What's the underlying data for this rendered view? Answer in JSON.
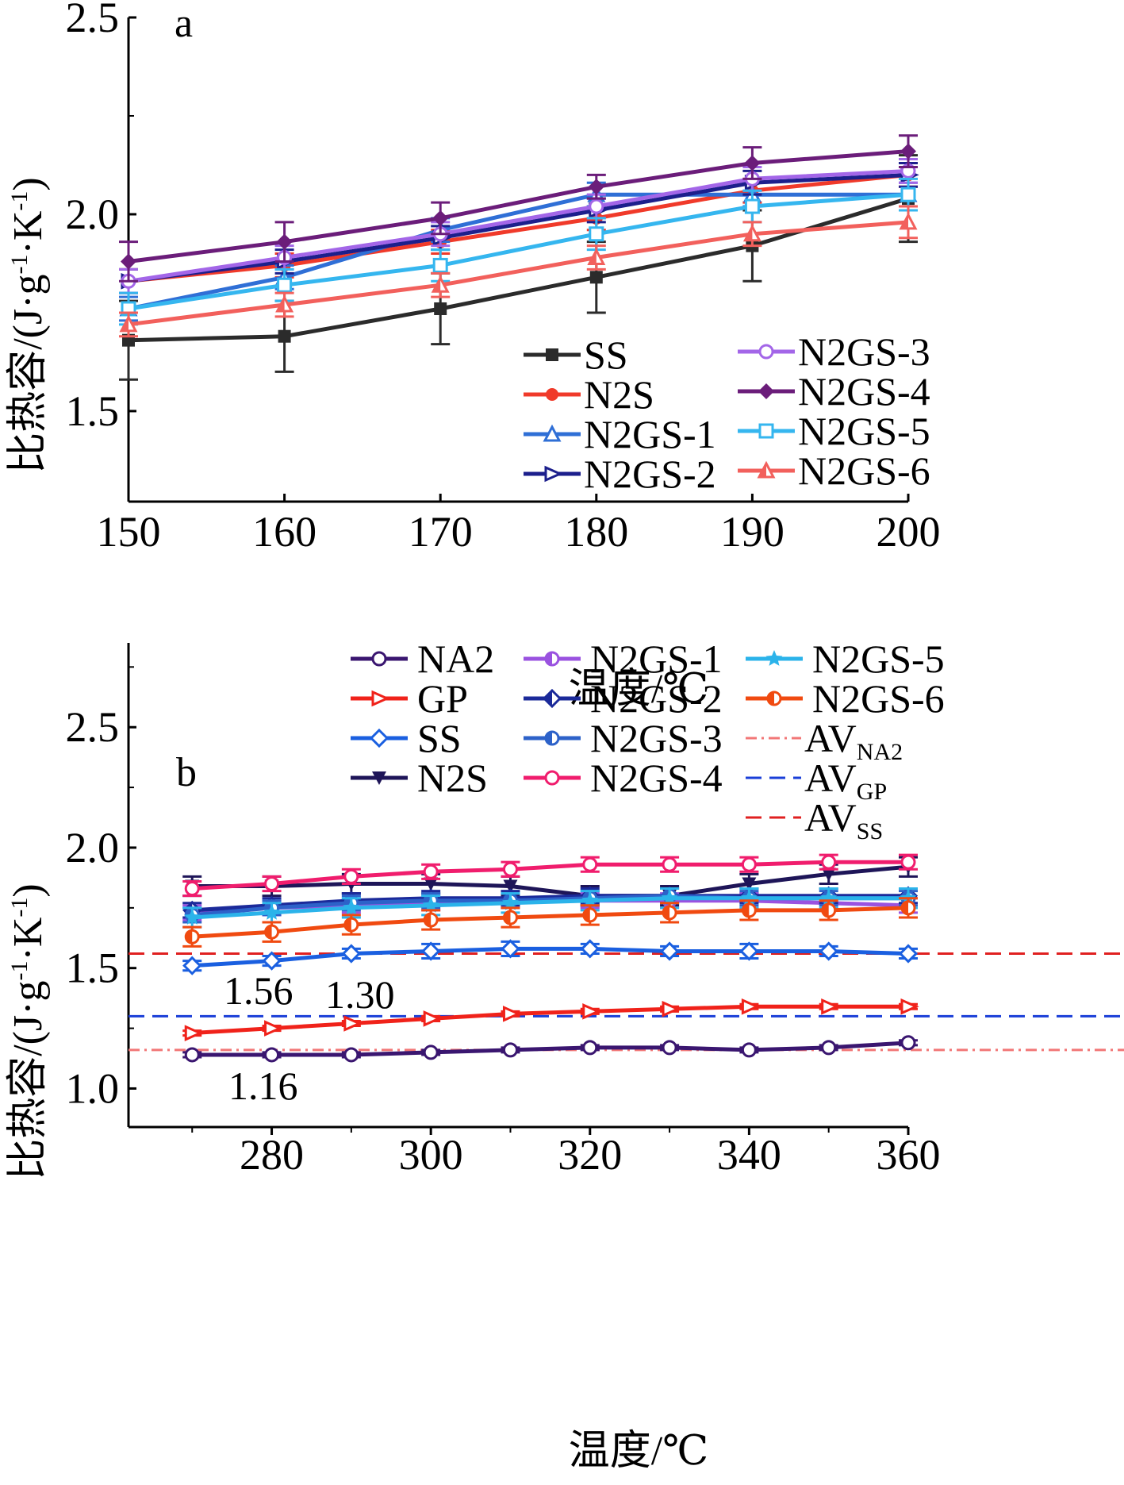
{
  "chart_data": [
    {
      "type": "line",
      "panel": "a",
      "xlabel": "温度/℃",
      "ylabel": "比热容/(J·g⁻¹·K⁻¹)",
      "x": [
        150,
        160,
        170,
        180,
        190,
        200
      ],
      "xticks": [
        "150",
        "160",
        "170",
        "180",
        "190",
        "200"
      ],
      "yticks": [
        "1.5",
        "2.0",
        "2.5"
      ],
      "xlim": [
        150,
        200
      ],
      "ylim": [
        1.27,
        2.5
      ],
      "grid": false,
      "legend_position": "bottom-right",
      "series": [
        {
          "name": "SS",
          "color": "#2b2b2b",
          "marker": "square",
          "values": [
            1.68,
            1.69,
            1.76,
            1.84,
            1.92,
            2.04
          ],
          "err": [
            0.1,
            0.09,
            0.09,
            0.09,
            0.09,
            0.11
          ]
        },
        {
          "name": "N2S",
          "color": "#f03a2a",
          "marker": "circle",
          "values": [
            1.83,
            1.87,
            1.93,
            1.99,
            2.06,
            2.1
          ],
          "err": [
            0.03,
            0.03,
            0.03,
            0.03,
            0.03,
            0.03
          ]
        },
        {
          "name": "N2GS-1",
          "color": "#2f6fd6",
          "marker": "triangle",
          "values": [
            1.76,
            1.84,
            1.96,
            2.05,
            2.05,
            2.05
          ],
          "err": [
            0.03,
            0.03,
            0.03,
            0.03,
            0.03,
            0.03
          ]
        },
        {
          "name": "N2GS-2",
          "color": "#1c1f8c",
          "marker": "tri-right",
          "values": [
            1.83,
            1.88,
            1.94,
            2.01,
            2.08,
            2.1
          ],
          "err": [
            0.03,
            0.03,
            0.03,
            0.03,
            0.03,
            0.03
          ]
        },
        {
          "name": "N2GS-3",
          "color": "#a366e8",
          "marker": "circle-open",
          "values": [
            1.83,
            1.89,
            1.95,
            2.02,
            2.09,
            2.11
          ],
          "err": [
            0.03,
            0.03,
            0.03,
            0.03,
            0.03,
            0.03
          ]
        },
        {
          "name": "N2GS-4",
          "color": "#6b1d7a",
          "marker": "diamond",
          "values": [
            1.88,
            1.93,
            1.99,
            2.07,
            2.13,
            2.16
          ],
          "err": [
            0.05,
            0.05,
            0.04,
            0.03,
            0.04,
            0.04
          ]
        },
        {
          "name": "N2GS-5",
          "color": "#35b6ef",
          "marker": "square-open",
          "values": [
            1.76,
            1.82,
            1.87,
            1.95,
            2.02,
            2.05
          ],
          "err": [
            0.04,
            0.04,
            0.04,
            0.04,
            0.04,
            0.04
          ]
        },
        {
          "name": "N2GS-6",
          "color": "#f2605c",
          "marker": "tri-half",
          "values": [
            1.72,
            1.77,
            1.82,
            1.89,
            1.95,
            1.98
          ],
          "err": [
            0.03,
            0.03,
            0.03,
            0.03,
            0.03,
            0.04
          ]
        }
      ]
    },
    {
      "type": "line",
      "panel": "b",
      "xlabel": "温度/℃",
      "ylabel": "比热容/(J·g⁻¹·K⁻¹)",
      "x": [
        270,
        280,
        290,
        300,
        310,
        320,
        330,
        340,
        350,
        360
      ],
      "xticks": [
        "280",
        "300",
        "320",
        "340",
        "360"
      ],
      "yticks": [
        "1.0",
        "1.5",
        "2.0",
        "2.5"
      ],
      "xlim": [
        262,
        360
      ],
      "ylim": [
        0.84,
        2.85
      ],
      "grid": false,
      "legend_position": "top-right",
      "series": [
        {
          "name": "NA2",
          "color": "#3a1670",
          "marker": "circle-open",
          "values": [
            1.14,
            1.14,
            1.14,
            1.15,
            1.16,
            1.17,
            1.17,
            1.16,
            1.17,
            1.19
          ],
          "err": [
            0.01,
            0.01,
            0.01,
            0.01,
            0.01,
            0.01,
            0.01,
            0.01,
            0.01,
            0.01
          ]
        },
        {
          "name": "GP",
          "color": "#f0221a",
          "marker": "tri-right",
          "values": [
            1.23,
            1.25,
            1.27,
            1.29,
            1.31,
            1.32,
            1.33,
            1.34,
            1.34,
            1.34
          ],
          "err": [
            0.01,
            0.01,
            0.01,
            0.01,
            0.01,
            0.01,
            0.01,
            0.01,
            0.01,
            0.01
          ]
        },
        {
          "name": "SS",
          "color": "#1a5fe0",
          "marker": "diamond-open",
          "values": [
            1.51,
            1.53,
            1.56,
            1.57,
            1.58,
            1.58,
            1.57,
            1.57,
            1.57,
            1.56
          ],
          "err": [
            0.02,
            0.02,
            0.02,
            0.03,
            0.03,
            0.02,
            0.02,
            0.03,
            0.02,
            0.02
          ]
        },
        {
          "name": "N2S",
          "color": "#1e1558",
          "marker": "tri-down",
          "values": [
            1.84,
            1.84,
            1.85,
            1.85,
            1.84,
            1.8,
            1.8,
            1.85,
            1.89,
            1.92
          ],
          "err": [
            0.04,
            0.04,
            0.04,
            0.04,
            0.04,
            0.04,
            0.04,
            0.04,
            0.04,
            0.04
          ]
        },
        {
          "name": "N2GS-1",
          "color": "#9a52e0",
          "marker": "half-circle",
          "values": [
            1.73,
            1.75,
            1.76,
            1.77,
            1.78,
            1.78,
            1.78,
            1.78,
            1.77,
            1.76
          ],
          "err": [
            0.03,
            0.03,
            0.03,
            0.03,
            0.03,
            0.03,
            0.03,
            0.03,
            0.03,
            0.03
          ]
        },
        {
          "name": "N2GS-2",
          "color": "#1b2a9a",
          "marker": "diamond-half",
          "values": [
            1.74,
            1.76,
            1.78,
            1.79,
            1.79,
            1.8,
            1.8,
            1.8,
            1.8,
            1.8
          ],
          "err": [
            0.03,
            0.03,
            0.03,
            0.03,
            0.03,
            0.03,
            0.03,
            0.03,
            0.03,
            0.03
          ]
        },
        {
          "name": "N2GS-3",
          "color": "#2d62c9",
          "marker": "half-circle",
          "values": [
            1.72,
            1.75,
            1.77,
            1.78,
            1.78,
            1.79,
            1.8,
            1.79,
            1.79,
            1.79
          ],
          "err": [
            0.03,
            0.03,
            0.03,
            0.03,
            0.03,
            0.03,
            0.03,
            0.03,
            0.03,
            0.03
          ]
        },
        {
          "name": "N2GS-4",
          "color": "#f01d6d",
          "marker": "circle-open",
          "values": [
            1.83,
            1.85,
            1.88,
            1.9,
            1.91,
            1.93,
            1.93,
            1.93,
            1.94,
            1.94
          ],
          "err": [
            0.03,
            0.03,
            0.03,
            0.03,
            0.03,
            0.03,
            0.03,
            0.03,
            0.03,
            0.03
          ]
        },
        {
          "name": "N2GS-5",
          "color": "#2bb3ea",
          "marker": "star",
          "values": [
            1.71,
            1.73,
            1.75,
            1.76,
            1.77,
            1.78,
            1.79,
            1.79,
            1.79,
            1.79
          ],
          "err": [
            0.04,
            0.04,
            0.04,
            0.04,
            0.04,
            0.04,
            0.04,
            0.04,
            0.04,
            0.04
          ]
        },
        {
          "name": "N2GS-6",
          "color": "#f04a10",
          "marker": "half-circle",
          "values": [
            1.63,
            1.65,
            1.68,
            1.7,
            1.71,
            1.72,
            1.73,
            1.74,
            1.74,
            1.75
          ],
          "err": [
            0.04,
            0.04,
            0.04,
            0.04,
            0.04,
            0.04,
            0.04,
            0.04,
            0.04,
            0.04
          ]
        }
      ],
      "reference_lines": [
        {
          "name": "AV",
          "sub": "NA2",
          "color": "#f27777",
          "style": "dashdot",
          "value": 1.16,
          "label": "1.16"
        },
        {
          "name": "AV",
          "sub": "GP",
          "color": "#1a3fd8",
          "style": "dashed",
          "value": 1.3,
          "label": "1.30"
        },
        {
          "name": "AV",
          "sub": "SS",
          "color": "#e02020",
          "style": "dashed",
          "value": 1.56,
          "label": "1.56"
        }
      ]
    }
  ]
}
